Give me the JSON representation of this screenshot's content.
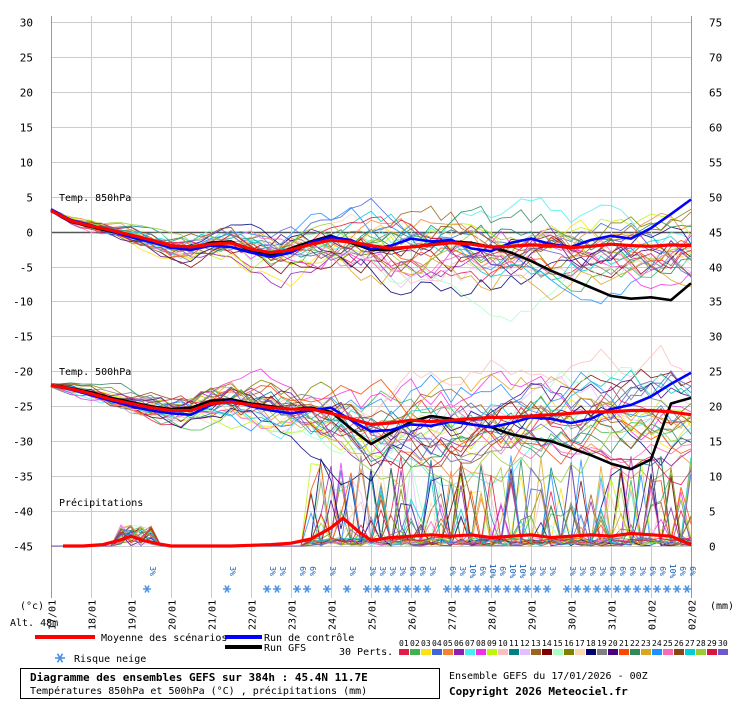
{
  "chart_data": {
    "type": "line",
    "left_axis": {
      "unit_label": "(°c)",
      "min": -45,
      "max": 30,
      "ticks": [
        30,
        25,
        20,
        15,
        10,
        5,
        0,
        -5,
        -10,
        -15,
        -20,
        -25,
        -30,
        -35,
        -40,
        -45
      ]
    },
    "right_axis": {
      "unit_label": "(mm)",
      "min": 0,
      "max": 75,
      "ticks": [
        75,
        70,
        65,
        60,
        55,
        50,
        45,
        40,
        35,
        30,
        25,
        20,
        15,
        10,
        5,
        0
      ]
    },
    "x_tick_labels": [
      "17/01",
      "18/01",
      "19/01",
      "20/01",
      "21/01",
      "22/01",
      "23/01",
      "24/01",
      "25/01",
      "26/01",
      "27/01",
      "28/01",
      "29/01",
      "30/01",
      "31/01",
      "01/02",
      "02/02"
    ],
    "panel_labels": [
      "Temp. 850hPa",
      "Temp. 500hPa",
      "Précipitations"
    ],
    "altitude": "Alt. 48m",
    "legend": {
      "mean": {
        "label": "Moyenne des scénarios",
        "color": "#ff0000"
      },
      "control": {
        "label": "Run de contrôle",
        "color": "#0000ff"
      },
      "gfs": {
        "label": "Run GFS",
        "color": "#000000"
      },
      "snow": {
        "label": "Risque neige",
        "color": "#4a90e2"
      },
      "perts_label": "30 Perts.",
      "perts_numbers": [
        "01",
        "02",
        "03",
        "04",
        "05",
        "06",
        "07",
        "08",
        "09",
        "10",
        "11",
        "12",
        "13",
        "14",
        "15",
        "16",
        "17",
        "18",
        "19",
        "20",
        "21",
        "22",
        "23",
        "24",
        "25",
        "26",
        "27",
        "28",
        "29",
        "30"
      ],
      "perts_colors": [
        "#e6194b",
        "#3cb44b",
        "#ffe119",
        "#4363d8",
        "#f58231",
        "#911eb4",
        "#46f0f0",
        "#f032e6",
        "#bcf60c",
        "#fabebe",
        "#008080",
        "#e6beff",
        "#9a6324",
        "#800000",
        "#aaffc3",
        "#808000",
        "#ffd8b1",
        "#000075",
        "#808080",
        "#4b0082",
        "#ff4500",
        "#2e8b57",
        "#daa520",
        "#1e90ff",
        "#ff69b4",
        "#8b4513",
        "#00ced1",
        "#9acd32",
        "#dc143c",
        "#6a5acd"
      ]
    },
    "snow_risk": [
      {
        "day": 2.4,
        "percent": "3%"
      },
      {
        "day": 4.4,
        "percent": "3%"
      },
      {
        "day": 5.4,
        "percent": "3%"
      },
      {
        "day": 5.65,
        "percent": "3%"
      },
      {
        "day": 6.15,
        "percent": "6%"
      },
      {
        "day": 6.4,
        "percent": "6%"
      },
      {
        "day": 6.9,
        "percent": "3%"
      },
      {
        "day": 7.4,
        "percent": "3%"
      },
      {
        "day": 7.9,
        "percent": "3%"
      },
      {
        "day": 8.15,
        "percent": "3%"
      },
      {
        "day": 8.4,
        "percent": "3%"
      },
      {
        "day": 8.65,
        "percent": "3%"
      },
      {
        "day": 8.9,
        "percent": "6%"
      },
      {
        "day": 9.15,
        "percent": "6%"
      },
      {
        "day": 9.4,
        "percent": "3%"
      },
      {
        "day": 9.9,
        "percent": "6%"
      },
      {
        "day": 10.15,
        "percent": "3%"
      },
      {
        "day": 10.4,
        "percent": "10%"
      },
      {
        "day": 10.65,
        "percent": "6%"
      },
      {
        "day": 10.9,
        "percent": "10%"
      },
      {
        "day": 11.15,
        "percent": "6%"
      },
      {
        "day": 11.4,
        "percent": "10%"
      },
      {
        "day": 11.65,
        "percent": "10%"
      },
      {
        "day": 11.9,
        "percent": "3%"
      },
      {
        "day": 12.15,
        "percent": "3%"
      },
      {
        "day": 12.4,
        "percent": "3%"
      },
      {
        "day": 12.9,
        "percent": "3%"
      },
      {
        "day": 13.15,
        "percent": "3%"
      },
      {
        "day": 13.4,
        "percent": "6%"
      },
      {
        "day": 13.65,
        "percent": "3%"
      },
      {
        "day": 13.9,
        "percent": "6%"
      },
      {
        "day": 14.15,
        "percent": "6%"
      },
      {
        "day": 14.4,
        "percent": "6%"
      },
      {
        "day": 14.65,
        "percent": "3%"
      },
      {
        "day": 14.9,
        "percent": "6%"
      },
      {
        "day": 15.15,
        "percent": "6%"
      },
      {
        "day": 15.4,
        "percent": "10%"
      },
      {
        "day": 15.65,
        "percent": "6%"
      },
      {
        "day": 15.9,
        "percent": "6%"
      }
    ],
    "series": [
      {
        "name": "Moyenne des scénarios",
        "panel": "t850",
        "x": [
          0,
          0.5,
          1,
          1.5,
          2,
          2.5,
          3,
          3.5,
          4,
          4.5,
          5,
          5.5,
          6,
          6.5,
          7,
          7.5,
          8,
          8.5,
          9,
          9.5,
          10,
          10.5,
          11,
          11.5,
          12,
          12.5,
          13,
          13.5,
          14,
          14.5,
          15,
          15.5,
          16
        ],
        "y": [
          3,
          1.5,
          0.8,
          0.2,
          -0.5,
          -1.2,
          -2,
          -2.2,
          -1.8,
          -1.6,
          -2.5,
          -3,
          -2.6,
          -1.8,
          -1.2,
          -1.5,
          -2,
          -2.4,
          -2.2,
          -1.9,
          -1.6,
          -1.8,
          -2.2,
          -2.1,
          -1.9,
          -2.0,
          -2.3,
          -2.1,
          -1.8,
          -2.0,
          -2.1,
          -1.9,
          -2.0
        ]
      },
      {
        "name": "Run de contrôle",
        "panel": "t850",
        "x": [
          0,
          0.5,
          1,
          1.5,
          2,
          2.5,
          3,
          3.5,
          4,
          4.5,
          5,
          5.5,
          6,
          6.5,
          7,
          7.5,
          8,
          8.5,
          9,
          9.5,
          10,
          10.5,
          11,
          11.5,
          12,
          12.5,
          13,
          13.5,
          14,
          14.5,
          15,
          15.5,
          16
        ],
        "y": [
          3.2,
          1.6,
          0.9,
          0.1,
          -0.8,
          -1.5,
          -2.3,
          -2.6,
          -2.0,
          -2.2,
          -3.0,
          -3.6,
          -3.0,
          -1.5,
          -0.8,
          -1.2,
          -2.5,
          -2.0,
          -1.0,
          -1.4,
          -1.2,
          -2.4,
          -2.8,
          -1.6,
          -1.0,
          -1.8,
          -2.2,
          -1.2,
          -0.6,
          -1.0,
          0.5,
          2.5,
          4.6
        ]
      },
      {
        "name": "Run GFS",
        "panel": "t850",
        "x": [
          0,
          0.5,
          1,
          1.5,
          2,
          2.5,
          3,
          3.5,
          4,
          4.5,
          5,
          5.5,
          6,
          6.5,
          7,
          7.5,
          8,
          8.5,
          9,
          9.5,
          10,
          10.5,
          11,
          11.5,
          12,
          12.5,
          13,
          13.5,
          14,
          14.5,
          15,
          15.5,
          16
        ],
        "y": [
          3.0,
          1.4,
          0.7,
          0.0,
          -0.6,
          -1.4,
          -2.2,
          -2.4,
          -1.6,
          -1.4,
          -2.8,
          -3.4,
          -2.4,
          -1.4,
          -0.6,
          -1.6,
          -2.6,
          -2.6,
          -2.2,
          -1.8,
          -1.4,
          -1.6,
          -2.2,
          -3.0,
          -4.2,
          -5.6,
          -6.8,
          -8.0,
          -9.2,
          -9.6,
          -9.4,
          -9.8,
          -7.4
        ]
      },
      {
        "name": "Moyenne des scénarios",
        "panel": "t500",
        "x": [
          0,
          0.5,
          1,
          1.5,
          2,
          2.5,
          3,
          3.5,
          4,
          4.5,
          5,
          5.5,
          6,
          6.5,
          7,
          7.5,
          8,
          8.5,
          9,
          9.5,
          10,
          10.5,
          11,
          11.5,
          12,
          12.5,
          13,
          13.5,
          14,
          14.5,
          15,
          15.5,
          16
        ],
        "y": [
          -22,
          -22.5,
          -23.2,
          -24,
          -24.6,
          -25.2,
          -25.6,
          -25.6,
          -24.6,
          -24.4,
          -24.8,
          -25.2,
          -25.4,
          -25.4,
          -26,
          -26.8,
          -27.6,
          -27.4,
          -27.0,
          -27.2,
          -27.0,
          -26.8,
          -26.6,
          -26.6,
          -26.4,
          -26.2,
          -26.0,
          -25.8,
          -25.8,
          -25.6,
          -25.6,
          -25.8,
          -26.2
        ]
      },
      {
        "name": "Run de contrôle",
        "panel": "t500",
        "x": [
          0,
          0.5,
          1,
          1.5,
          2,
          2.5,
          3,
          3.5,
          4,
          4.5,
          5,
          5.5,
          6,
          6.5,
          7,
          7.5,
          8,
          8.5,
          9,
          9.5,
          10,
          10.5,
          11,
          11.5,
          12,
          12.5,
          13,
          13.5,
          14,
          14.5,
          15,
          15.5,
          16
        ],
        "y": [
          -22,
          -22.6,
          -23.4,
          -24.2,
          -25.0,
          -25.6,
          -26.0,
          -26.2,
          -24.8,
          -24.2,
          -25.0,
          -25.6,
          -26.0,
          -25.6,
          -25.2,
          -27.0,
          -28.6,
          -28.4,
          -27.6,
          -27.8,
          -27.2,
          -27.6,
          -28.0,
          -27.4,
          -26.6,
          -26.8,
          -27.4,
          -26.8,
          -25.4,
          -24.8,
          -23.6,
          -21.8,
          -20.2
        ]
      },
      {
        "name": "Run GFS",
        "panel": "t500",
        "x": [
          0,
          0.5,
          1,
          1.5,
          2,
          2.5,
          3,
          3.5,
          4,
          4.5,
          5,
          5.5,
          6,
          6.5,
          7,
          7.5,
          8,
          8.5,
          9,
          9.5,
          10,
          10.5,
          11,
          11.5,
          12,
          12.5,
          13,
          13.5,
          14,
          14.5,
          15,
          15.5,
          16
        ],
        "y": [
          -22,
          -22.4,
          -23.0,
          -23.8,
          -24.4,
          -25.0,
          -25.4,
          -25.2,
          -24.2,
          -24.0,
          -24.6,
          -25.0,
          -25.4,
          -25.2,
          -25.8,
          -28.2,
          -30.4,
          -28.8,
          -27.2,
          -26.4,
          -26.8,
          -27.6,
          -28.0,
          -29.0,
          -29.6,
          -30.0,
          -31.0,
          -32.0,
          -33.2,
          -34.0,
          -32.6,
          -24.6,
          -23.8
        ]
      },
      {
        "name": "Moyenne des scénarios",
        "panel": "precip",
        "x": [
          0.3,
          0.8,
          1.3,
          1.7,
          2.0,
          2.3,
          2.7,
          3.0,
          3.5,
          4.0,
          4.5,
          5.0,
          5.5,
          6.0,
          6.5,
          7.0,
          7.3,
          7.7,
          8.0,
          8.5,
          9.0,
          9.5,
          10.0,
          10.5,
          11.0,
          11.5,
          12.0,
          12.5,
          13.0,
          13.5,
          14.0,
          14.5,
          15.0,
          15.5,
          16.0
        ],
        "y": [
          0,
          0,
          0.2,
          0.8,
          1.4,
          0.8,
          0.3,
          0,
          0,
          0,
          0,
          0.1,
          0.2,
          0.4,
          1.0,
          2.6,
          4.0,
          2.0,
          0.8,
          1.2,
          1.4,
          1.6,
          1.4,
          1.6,
          1.2,
          1.4,
          1.6,
          1.2,
          1.4,
          1.6,
          1.4,
          1.8,
          1.6,
          1.4,
          0.2
        ]
      }
    ]
  }
}
